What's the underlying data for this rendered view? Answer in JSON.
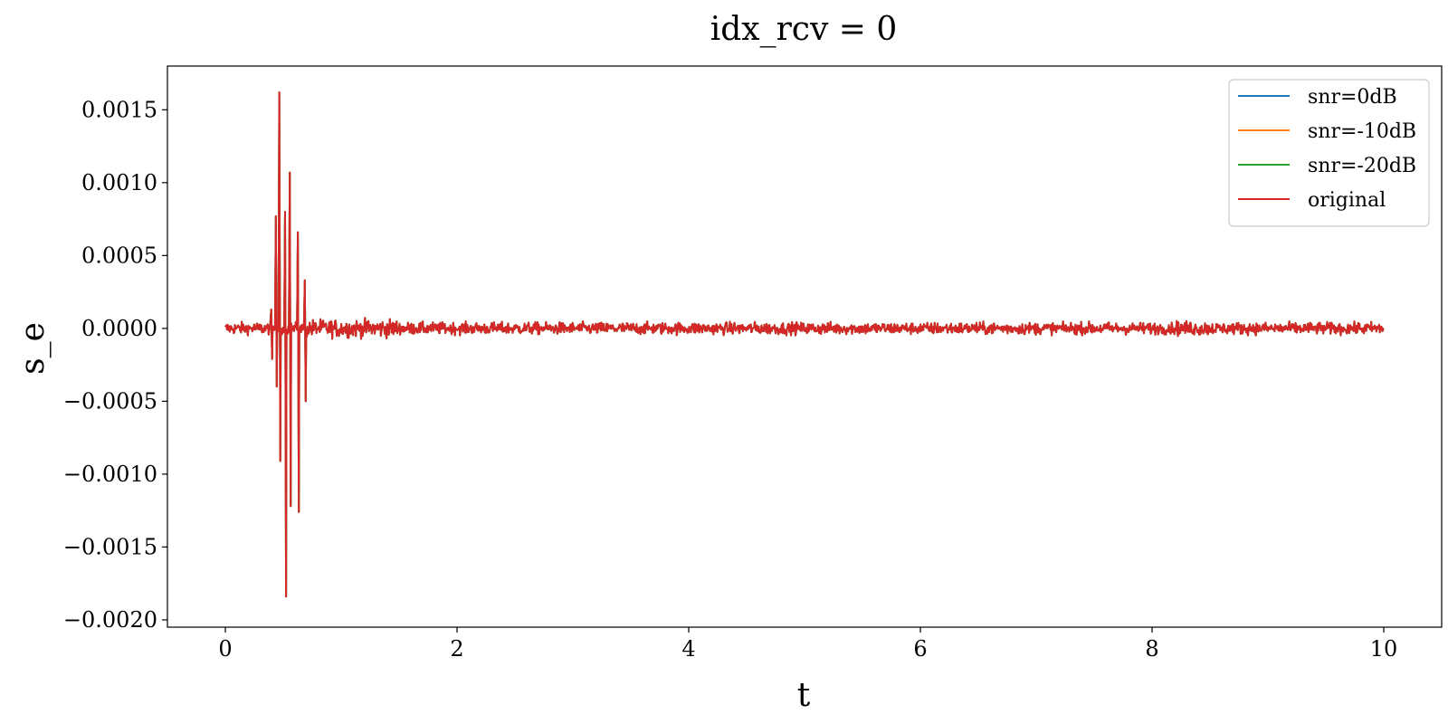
{
  "chart_data": {
    "type": "line",
    "title": "idx_rcv = 0",
    "xlabel": "t",
    "ylabel": "s_e",
    "xlim": [
      -0.5,
      10.5
    ],
    "ylim": [
      -0.00205,
      0.0018
    ],
    "x_ticks": [
      0,
      2,
      4,
      6,
      8,
      10
    ],
    "x_tick_labels": [
      "0",
      "2",
      "4",
      "6",
      "8",
      "10"
    ],
    "y_ticks": [
      0.0015,
      0.001,
      0.0005,
      0.0,
      -0.0005,
      -0.001,
      -0.0015,
      -0.002
    ],
    "y_tick_labels": [
      "0.0015",
      "0.0010",
      "0.0005",
      "0.0000",
      "−0.0005",
      "−0.0010",
      "−0.0015",
      "−0.0020"
    ],
    "grid": false,
    "legend_position": "top-right",
    "x_range": [
      0,
      10
    ],
    "noise_amplitude": 4e-05,
    "series": [
      {
        "name": "snr=0dB",
        "color": "#1f77b4"
      },
      {
        "name": "snr=-10dB",
        "color": "#ff7f0e"
      },
      {
        "name": "snr=-20dB",
        "color": "#2ca02c"
      },
      {
        "name": "original",
        "color": "#d62728"
      }
    ],
    "spikes": [
      {
        "t": 0.4,
        "ymax": 0.00013,
        "ymin": -0.00021
      },
      {
        "t": 0.44,
        "ymax": 0.00077,
        "ymin": -0.0004
      },
      {
        "t": 0.47,
        "ymax": 0.00162,
        "ymin": -0.00091
      },
      {
        "t": 0.52,
        "ymax": 0.0008,
        "ymin": -0.00184
      },
      {
        "t": 0.56,
        "ymax": 0.00107,
        "ymin": -0.00122
      },
      {
        "t": 0.63,
        "ymax": 0.00066,
        "ymin": -0.00126
      },
      {
        "t": 0.69,
        "ymax": 0.00033,
        "ymin": -0.0005
      }
    ]
  }
}
